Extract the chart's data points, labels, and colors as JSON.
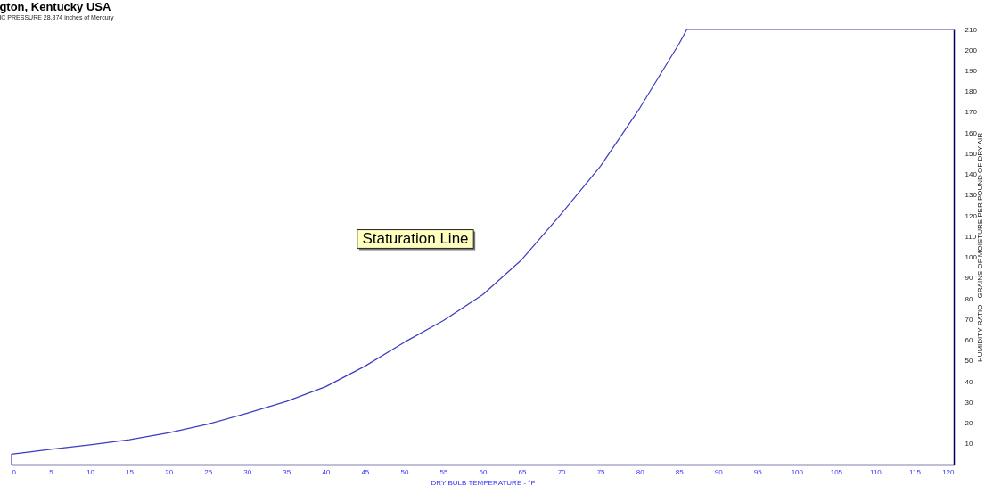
{
  "chart_data": {
    "type": "line",
    "title": "gton, Kentucky USA",
    "subtitle": "IC PRESSURE 28.874 inches of Mercury",
    "xlabel": "DRY BULB TEMPERATURE - °F",
    "ylabel": "HUMIDITY RATIO - GRAINS OF MOISTURE PER POUND OF DRY AIR",
    "annotations": [
      "Staturation Line"
    ],
    "series": [
      {
        "color": "#3c3cc0",
        "x": [
          0,
          0,
          5,
          10,
          15,
          20,
          25,
          30,
          35,
          40,
          45,
          50,
          55,
          60,
          65,
          70,
          75,
          80,
          85,
          86,
          120
        ],
        "values": [
          0,
          5,
          7.4,
          9.5,
          12,
          15.3,
          19.5,
          24.8,
          30.5,
          37.6,
          47.5,
          59,
          69.5,
          82,
          99,
          121,
          144,
          172,
          203,
          210,
          210
        ]
      }
    ],
    "xlim": [
      0,
      120
    ],
    "xticks": [
      0,
      5,
      10,
      15,
      20,
      25,
      30,
      35,
      40,
      45,
      50,
      55,
      60,
      65,
      70,
      75,
      80,
      85,
      90,
      95,
      100,
      105,
      110,
      115,
      120
    ],
    "ylim": [
      0,
      210
    ],
    "yticks": [
      10,
      20,
      30,
      40,
      50,
      60,
      70,
      80,
      90,
      100,
      110,
      120,
      130,
      140,
      150,
      160,
      170,
      180,
      190,
      200,
      210
    ]
  }
}
